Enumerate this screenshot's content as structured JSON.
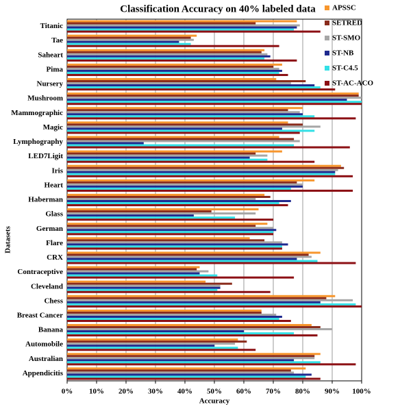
{
  "chart_data": {
    "type": "bar",
    "orientation": "horizontal",
    "title": "Classification Accuracy on 40% labeled data",
    "xlabel": "Accuracy",
    "ylabel": "Datasets",
    "categories": [
      "Titanic",
      "Tae",
      "Saheart",
      "Pima",
      "Nursery",
      "Mushroom",
      "Mammographic",
      "Magic",
      "Lymphography",
      "LED7Ligit",
      "Iris",
      "Heart",
      "Haberman",
      "Glass",
      "German",
      "Flare",
      "CRX",
      "Contraceptive",
      "Cleveland",
      "Chess",
      "Breast Cancer",
      "Banana",
      "Automobile",
      "Australian",
      "Appendicitis"
    ],
    "series": [
      {
        "name": "APSSC",
        "color": "#f7962d",
        "values": [
          78,
          44,
          67,
          73,
          71,
          99,
          80,
          75,
          72,
          73,
          93,
          84,
          67,
          65,
          68,
          62,
          86,
          45,
          47,
          91,
          66,
          83,
          58,
          86,
          81
        ]
      },
      {
        "name": "SETRED",
        "color": "#8a2c1c",
        "values": [
          64,
          42,
          66,
          70,
          81,
          99,
          75,
          80,
          77,
          64,
          94,
          78,
          69,
          49,
          64,
          67,
          82,
          44,
          56,
          88,
          66,
          86,
          61,
          84,
          76
        ]
      },
      {
        "name": "ST-SMO",
        "color": "#a6a6a6",
        "values": [
          79,
          43,
          68,
          72,
          76,
          100,
          79,
          86,
          79,
          68,
          92,
          80,
          64,
          64,
          70,
          73,
          83,
          48,
          52,
          97,
          71,
          90,
          57,
          84,
          77
        ]
      },
      {
        "name": "ST-NB",
        "color": "#1f2a8f",
        "values": [
          78,
          38,
          69,
          73,
          84,
          95,
          80,
          73,
          26,
          62,
          91,
          80,
          76,
          43,
          71,
          75,
          78,
          45,
          52,
          86,
          73,
          60,
          50,
          77,
          83
        ]
      },
      {
        "name": "ST-C4.5",
        "color": "#33e0e6",
        "values": [
          77,
          42,
          67,
          72,
          86,
          100,
          84,
          84,
          77,
          68,
          91,
          76,
          72,
          57,
          70,
          73,
          85,
          51,
          51,
          98,
          72,
          77,
          58,
          86,
          81
        ]
      },
      {
        "name": "ST-AC-ACO",
        "color": "#8c1014",
        "values": [
          86,
          72,
          78,
          75,
          91,
          100,
          98,
          79,
          96,
          84,
          97,
          97,
          75,
          70,
          70,
          73,
          98,
          77,
          69,
          100,
          76,
          85,
          64,
          98,
          86
        ]
      }
    ],
    "xlim": [
      0,
      100
    ],
    "xticks": [
      {
        "value": 0,
        "label": "0%"
      },
      {
        "value": 10,
        "label": "10%"
      },
      {
        "value": 20,
        "label": "20%"
      },
      {
        "value": 30,
        "label": "30%"
      },
      {
        "value": 40,
        "label": "40%"
      },
      {
        "value": 50,
        "label": "50%"
      },
      {
        "value": 60,
        "label": "60%"
      },
      {
        "value": 70,
        "label": "70%"
      },
      {
        "value": 80,
        "label": "80%"
      },
      {
        "value": 90,
        "label": "90%"
      },
      {
        "value": 100,
        "label": "100%"
      }
    ],
    "grid": true,
    "legend": "upper right"
  }
}
